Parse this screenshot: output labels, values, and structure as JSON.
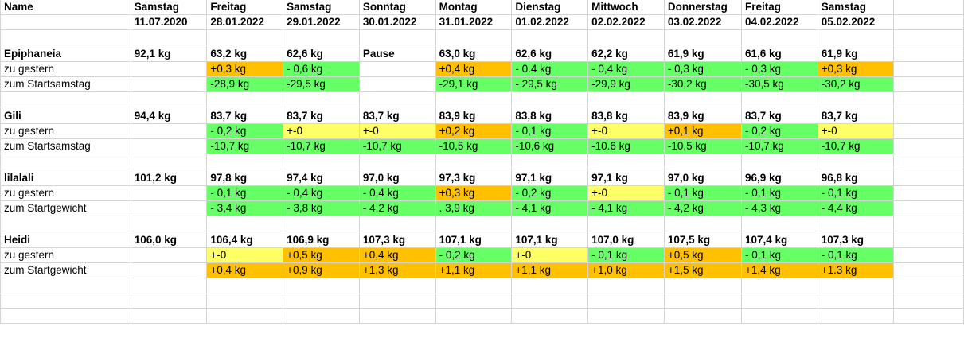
{
  "colors": {
    "green": "#66ff66",
    "orange": "#ffc000",
    "yellow": "#ffff66",
    "grid": "#d4d4d4"
  },
  "rows": [
    {
      "kind": "header",
      "cells": [
        {
          "t": "Name"
        },
        {
          "t": "Samstag"
        },
        {
          "t": "Freitag"
        },
        {
          "t": "Samstag"
        },
        {
          "t": "Sonntag"
        },
        {
          "t": "Montag"
        },
        {
          "t": "Dienstag"
        },
        {
          "t": "Mittwoch"
        },
        {
          "t": "Donnerstag"
        },
        {
          "t": "Freitag"
        },
        {
          "t": "Samstag"
        }
      ]
    },
    {
      "kind": "header",
      "cells": [
        {
          "t": ""
        },
        {
          "t": "11.07.2020"
        },
        {
          "t": "28.01.2022"
        },
        {
          "t": "29.01.2022"
        },
        {
          "t": "30.01.2022"
        },
        {
          "t": "31.01.2022"
        },
        {
          "t": "01.02.2022"
        },
        {
          "t": "02.02.2022"
        },
        {
          "t": "03.02.2022"
        },
        {
          "t": "04.02.2022"
        },
        {
          "t": "05.02.2022"
        }
      ]
    },
    {
      "kind": "blank"
    },
    {
      "kind": "name",
      "cells": [
        {
          "t": "Epiphaneia"
        },
        {
          "t": "92,1 kg"
        },
        {
          "t": "63,2 kg"
        },
        {
          "t": "62,6 kg"
        },
        {
          "t": "Pause"
        },
        {
          "t": "63,0 kg"
        },
        {
          "t": "62,6 kg"
        },
        {
          "t": "62,2 kg"
        },
        {
          "t": "61,9 kg"
        },
        {
          "t": "61,6 kg"
        },
        {
          "t": "61,9 kg"
        }
      ]
    },
    {
      "kind": "data",
      "cells": [
        {
          "t": "zu gestern"
        },
        {
          "t": ""
        },
        {
          "t": "+0,3 kg",
          "c": "orange"
        },
        {
          "t": "- 0,6 kg",
          "c": "green"
        },
        {
          "t": ""
        },
        {
          "t": "+0,4 kg",
          "c": "orange"
        },
        {
          "t": "- 0.4 kg",
          "c": "green"
        },
        {
          "t": "- 0,4 kg",
          "c": "green"
        },
        {
          "t": "- 0,3 kg",
          "c": "green"
        },
        {
          "t": "- 0,3 kg",
          "c": "green"
        },
        {
          "t": "+0,3 kg",
          "c": "orange"
        }
      ]
    },
    {
      "kind": "data",
      "cells": [
        {
          "t": "zum Startsamstag"
        },
        {
          "t": ""
        },
        {
          "t": "-28,9 kg",
          "c": "green"
        },
        {
          "t": "-29,5 kg",
          "c": "green"
        },
        {
          "t": ""
        },
        {
          "t": "-29,1 kg",
          "c": "green"
        },
        {
          "t": "- 29,5 kg",
          "c": "green"
        },
        {
          "t": "-29,9 kg",
          "c": "green"
        },
        {
          "t": "-30,2 kg",
          "c": "green"
        },
        {
          "t": "-30,5 kg",
          "c": "green"
        },
        {
          "t": "-30,2 kg",
          "c": "green"
        }
      ]
    },
    {
      "kind": "blank"
    },
    {
      "kind": "name",
      "cells": [
        {
          "t": "Gili"
        },
        {
          "t": "94,4 kg"
        },
        {
          "t": "83,7 kg"
        },
        {
          "t": "83,7 kg"
        },
        {
          "t": "83,7 kg"
        },
        {
          "t": "83,9 kg"
        },
        {
          "t": "83,8 kg"
        },
        {
          "t": "83,8 kg"
        },
        {
          "t": "83,9 kg"
        },
        {
          "t": "83,7 kg"
        },
        {
          "t": "83,7 kg"
        }
      ]
    },
    {
      "kind": "data",
      "cells": [
        {
          "t": "zu gestern"
        },
        {
          "t": ""
        },
        {
          "t": "- 0,2 kg",
          "c": "green"
        },
        {
          "t": "+-0",
          "c": "yellow"
        },
        {
          "t": "+-0",
          "c": "yellow"
        },
        {
          "t": "+0,2 kg",
          "c": "orange"
        },
        {
          "t": "- 0,1 kg",
          "c": "green"
        },
        {
          "t": "+-0",
          "c": "yellow"
        },
        {
          "t": "+0,1 kg",
          "c": "orange"
        },
        {
          "t": "- 0,2 kg",
          "c": "green"
        },
        {
          "t": "+-0",
          "c": "yellow"
        }
      ]
    },
    {
      "kind": "data",
      "cells": [
        {
          "t": "zum Startsamstag"
        },
        {
          "t": ""
        },
        {
          "t": "-10,7 kg",
          "c": "green"
        },
        {
          "t": "-10,7 kg",
          "c": "green"
        },
        {
          "t": "-10,7 kg",
          "c": "green"
        },
        {
          "t": "-10,5 kg",
          "c": "green"
        },
        {
          "t": "-10,6 kg",
          "c": "green"
        },
        {
          "t": "-10.6 kg",
          "c": "green"
        },
        {
          "t": "-10,5 kg",
          "c": "green"
        },
        {
          "t": "-10,7 kg",
          "c": "green"
        },
        {
          "t": "-10,7 kg",
          "c": "green"
        }
      ]
    },
    {
      "kind": "blank"
    },
    {
      "kind": "name",
      "cells": [
        {
          "t": "lilalali"
        },
        {
          "t": "101,2 kg"
        },
        {
          "t": "97,8 kg"
        },
        {
          "t": "97,4 kg"
        },
        {
          "t": "97,0 kg"
        },
        {
          "t": "97,3 kg"
        },
        {
          "t": "97,1 kg"
        },
        {
          "t": "97,1 kg"
        },
        {
          "t": "97,0 kg"
        },
        {
          "t": "96,9 kg"
        },
        {
          "t": "96,8 kg"
        }
      ]
    },
    {
      "kind": "data",
      "cells": [
        {
          "t": "zu gestern"
        },
        {
          "t": ""
        },
        {
          "t": "- 0,1 kg",
          "c": "green"
        },
        {
          "t": "- 0,4 kg",
          "c": "green"
        },
        {
          "t": "- 0,4 kg",
          "c": "green"
        },
        {
          "t": "+0,3 kg",
          "c": "orange"
        },
        {
          "t": "- 0,2 kg",
          "c": "green"
        },
        {
          "t": "+-0",
          "c": "yellow"
        },
        {
          "t": "- 0,1 kg",
          "c": "green"
        },
        {
          "t": "- 0,1 kg",
          "c": "green"
        },
        {
          "t": "- 0,1 kg",
          "c": "green"
        }
      ]
    },
    {
      "kind": "data",
      "cells": [
        {
          "t": "zum Startgewicht"
        },
        {
          "t": ""
        },
        {
          "t": "- 3,4 kg",
          "c": "green"
        },
        {
          "t": "- 3,8 kg",
          "c": "green"
        },
        {
          "t": "- 4,2 kg",
          "c": "green"
        },
        {
          "t": ". 3,9 kg",
          "c": "green"
        },
        {
          "t": "- 4,1 kg",
          "c": "green"
        },
        {
          "t": "- 4,1 kg",
          "c": "green"
        },
        {
          "t": "- 4,2 kg",
          "c": "green"
        },
        {
          "t": "- 4,3 kg",
          "c": "green"
        },
        {
          "t": "- 4,4 kg",
          "c": "green"
        }
      ]
    },
    {
      "kind": "blank"
    },
    {
      "kind": "name",
      "cells": [
        {
          "t": "Heidi"
        },
        {
          "t": "106,0 kg"
        },
        {
          "t": "106,4 kg"
        },
        {
          "t": "106,9 kg"
        },
        {
          "t": "107,3 kg"
        },
        {
          "t": "107,1 kg"
        },
        {
          "t": "107,1 kg"
        },
        {
          "t": "107,0 kg"
        },
        {
          "t": "107,5 kg"
        },
        {
          "t": "107,4 kg"
        },
        {
          "t": "107,3 kg"
        }
      ]
    },
    {
      "kind": "data",
      "cells": [
        {
          "t": "zu gestern"
        },
        {
          "t": ""
        },
        {
          "t": "+-0",
          "c": "yellow"
        },
        {
          "t": "+0,5 kg",
          "c": "orange"
        },
        {
          "t": "+0,4 kg",
          "c": "orange"
        },
        {
          "t": "- 0,2 kg",
          "c": "green"
        },
        {
          "t": "+-0",
          "c": "yellow"
        },
        {
          "t": "- 0,1 kg",
          "c": "green"
        },
        {
          "t": "+0,5 kg",
          "c": "orange"
        },
        {
          "t": "- 0,1 kg",
          "c": "green"
        },
        {
          "t": "- 0,1 kg",
          "c": "green"
        }
      ]
    },
    {
      "kind": "data",
      "cells": [
        {
          "t": "zum Startgewicht"
        },
        {
          "t": ""
        },
        {
          "t": "+0,4 kg",
          "c": "orange"
        },
        {
          "t": "+0,9 kg",
          "c": "orange"
        },
        {
          "t": "+1,3 kg",
          "c": "orange"
        },
        {
          "t": "+1,1 kg",
          "c": "orange"
        },
        {
          "t": "+1,1 kg",
          "c": "orange"
        },
        {
          "t": "+1,0 kg",
          "c": "orange"
        },
        {
          "t": "+1,5 kg",
          "c": "orange"
        },
        {
          "t": "+1,4 kg",
          "c": "orange"
        },
        {
          "t": "+1.3 kg",
          "c": "orange"
        }
      ]
    },
    {
      "kind": "blank"
    },
    {
      "kind": "blank"
    },
    {
      "kind": "blank"
    }
  ]
}
